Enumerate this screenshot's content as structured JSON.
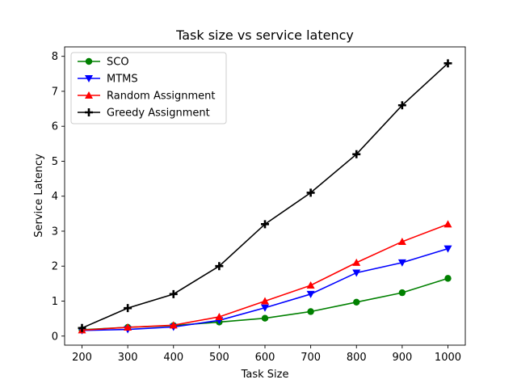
{
  "chart_data": {
    "type": "line",
    "title": "Task size vs service latency",
    "xlabel": "Task Size",
    "ylabel": "Service Latency",
    "x": [
      200,
      300,
      400,
      500,
      600,
      700,
      800,
      900,
      1000
    ],
    "xticks": [
      200,
      300,
      400,
      500,
      600,
      700,
      800,
      900,
      1000
    ],
    "yticks": [
      0,
      1,
      2,
      3,
      4,
      5,
      6,
      7,
      8
    ],
    "xlim": [
      162,
      1038
    ],
    "ylim": [
      -0.26,
      8.27
    ],
    "grid": false,
    "legend_position": "upper-left",
    "series": [
      {
        "name": "SCO",
        "color": "#008000",
        "marker": "circle",
        "values": [
          0.18,
          0.25,
          0.3,
          0.4,
          0.51,
          0.7,
          0.97,
          1.24,
          1.65
        ]
      },
      {
        "name": "MTMS",
        "color": "#0000ff",
        "marker": "triangle-down",
        "values": [
          0.16,
          0.19,
          0.26,
          0.45,
          0.81,
          1.2,
          1.81,
          2.1,
          2.5
        ]
      },
      {
        "name": "Random Assignment",
        "color": "#ff0000",
        "marker": "triangle-up",
        "values": [
          0.17,
          0.25,
          0.31,
          0.55,
          1.0,
          1.45,
          2.1,
          2.7,
          3.2
        ]
      },
      {
        "name": "Greedy Assignment",
        "color": "#000000",
        "marker": "plus",
        "values": [
          0.23,
          0.8,
          1.2,
          2.0,
          3.2,
          4.1,
          5.2,
          6.6,
          7.8
        ]
      }
    ]
  }
}
